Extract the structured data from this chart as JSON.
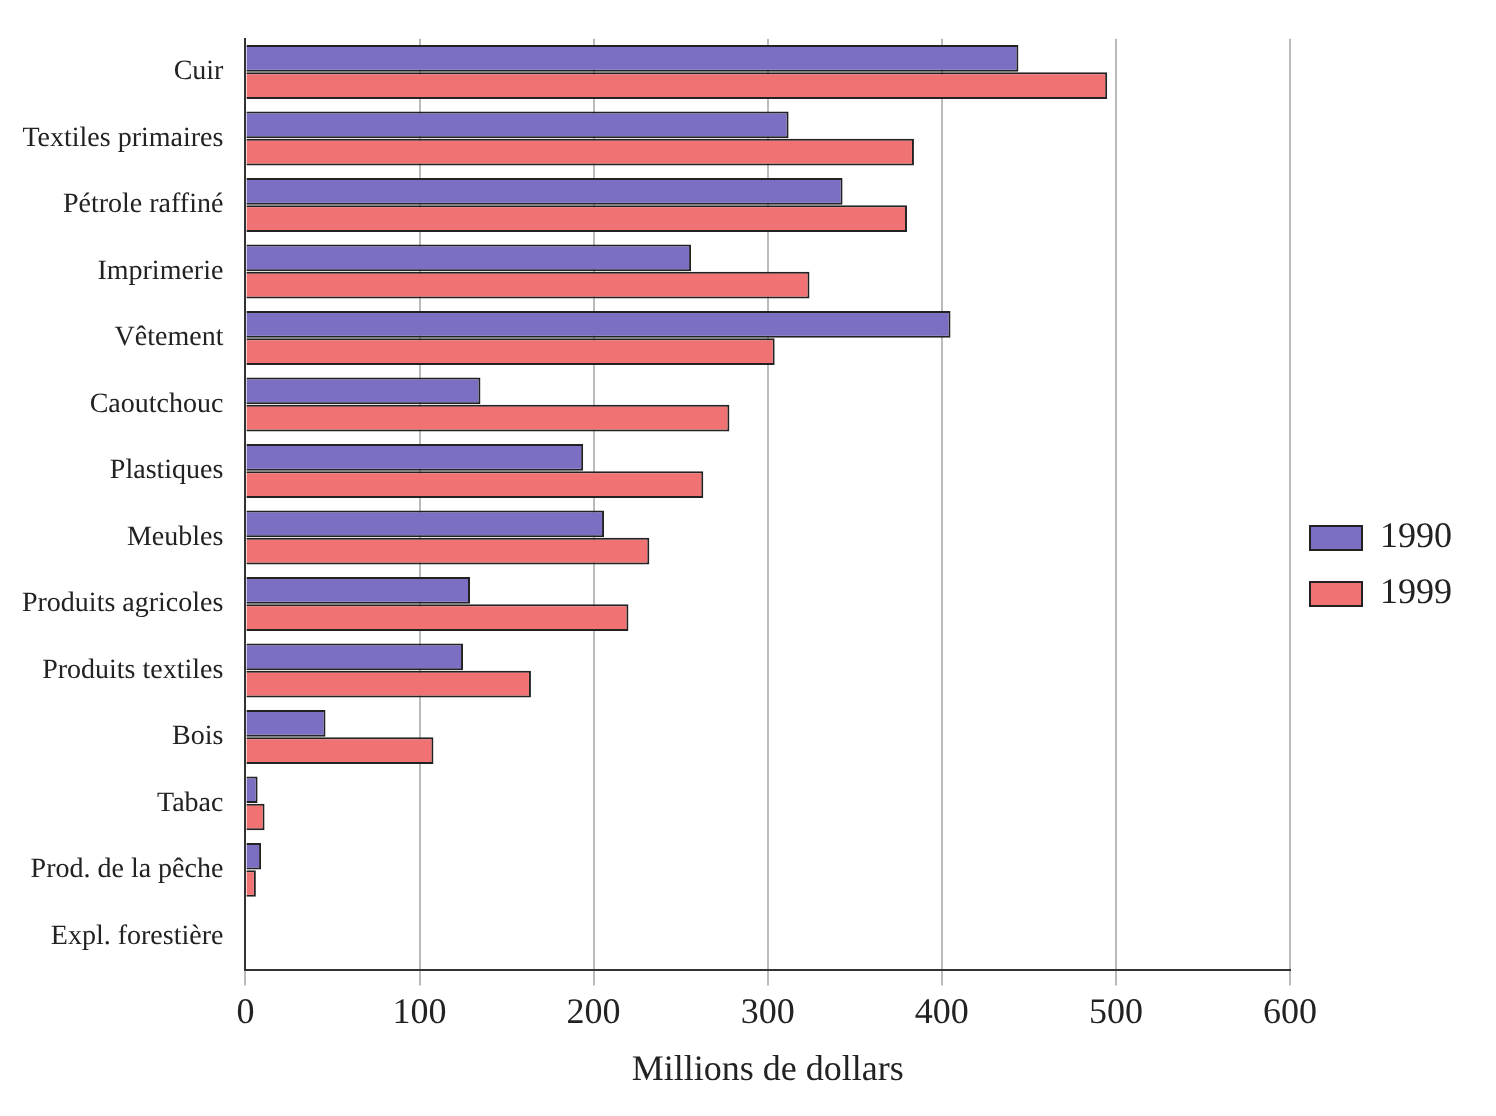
{
  "chart_data": {
    "type": "bar",
    "orientation": "horizontal",
    "xlabel": "Millions de dollars",
    "categories": [
      "Cuir",
      "Textiles primaires",
      "Pétrole raffiné",
      "Imprimerie",
      "Vêtement",
      "Caoutchouc",
      "Plastiques",
      "Meubles",
      "Produits agricoles",
      "Produits textiles",
      "Bois",
      "Tabac",
      "Prod. de la pêche",
      "Expl. forestière"
    ],
    "series": [
      {
        "name": "1990",
        "color": "#7b6fc4",
        "values": [
          444,
          312,
          343,
          256,
          405,
          135,
          194,
          206,
          129,
          125,
          46,
          7,
          9,
          null
        ]
      },
      {
        "name": "1999",
        "color": "#f07272",
        "values": [
          495,
          384,
          380,
          324,
          304,
          278,
          263,
          232,
          220,
          164,
          108,
          11,
          6,
          null
        ]
      }
    ],
    "xlim": [
      0,
      600
    ],
    "xticks": [
      0,
      100,
      200,
      300,
      400,
      500,
      600
    ],
    "grid": "x",
    "legend": "right"
  }
}
